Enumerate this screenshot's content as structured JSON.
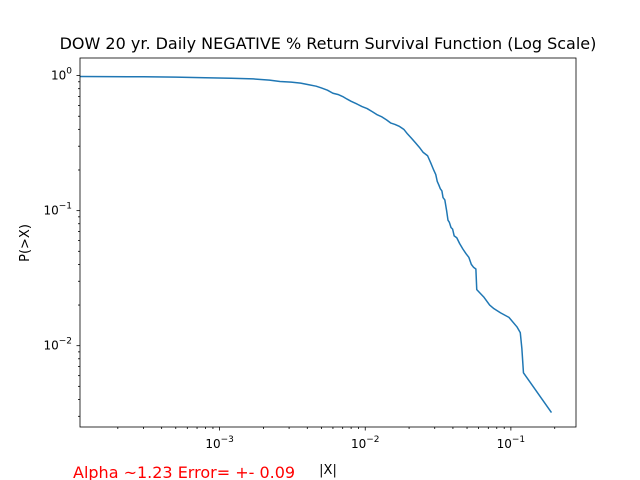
{
  "chart_data": {
    "type": "line",
    "title": "DOW 20 yr. Daily NEGATIVE % Return Survival Function (Log Scale)",
    "xlabel": "|X|",
    "ylabel": "P(>X)",
    "xscale": "log",
    "yscale": "log",
    "xlim": [
      0.00011,
      0.28
    ],
    "ylim": [
      0.0025,
      1.35
    ],
    "grid": false,
    "line_color": "#1f77b4",
    "xticks": [
      {
        "value": 0.001,
        "base": "10",
        "exp": "−3"
      },
      {
        "value": 0.01,
        "base": "10",
        "exp": "−2"
      },
      {
        "value": 0.1,
        "base": "10",
        "exp": "−1"
      }
    ],
    "yticks": [
      {
        "value": 0.01,
        "base": "10",
        "exp": "−2"
      },
      {
        "value": 0.1,
        "base": "10",
        "exp": "−1"
      },
      {
        "value": 1,
        "base": "10",
        "exp": "0"
      }
    ],
    "series": [
      {
        "points": [
          [
            0.00011,
            0.985
          ],
          [
            0.0003,
            0.98
          ],
          [
            0.0005,
            0.975
          ],
          [
            0.0008,
            0.965
          ],
          [
            0.0012,
            0.955
          ],
          [
            0.0017,
            0.945
          ],
          [
            0.0022,
            0.925
          ],
          [
            0.0026,
            0.905
          ],
          [
            0.0031,
            0.895
          ],
          [
            0.0036,
            0.88
          ],
          [
            0.0041,
            0.855
          ],
          [
            0.0046,
            0.835
          ],
          [
            0.005,
            0.81
          ],
          [
            0.0055,
            0.78
          ],
          [
            0.006,
            0.74
          ],
          [
            0.0065,
            0.725
          ],
          [
            0.007,
            0.7
          ],
          [
            0.0075,
            0.67
          ],
          [
            0.008,
            0.645
          ],
          [
            0.0088,
            0.615
          ],
          [
            0.0095,
            0.59
          ],
          [
            0.0103,
            0.57
          ],
          [
            0.0112,
            0.54
          ],
          [
            0.012,
            0.515
          ],
          [
            0.013,
            0.495
          ],
          [
            0.014,
            0.47
          ],
          [
            0.015,
            0.445
          ],
          [
            0.016,
            0.435
          ],
          [
            0.0172,
            0.42
          ],
          [
            0.0184,
            0.4
          ],
          [
            0.0195,
            0.37
          ],
          [
            0.0207,
            0.345
          ],
          [
            0.022,
            0.32
          ],
          [
            0.0235,
            0.295
          ],
          [
            0.025,
            0.27
          ],
          [
            0.0268,
            0.255
          ],
          [
            0.0282,
            0.225
          ],
          [
            0.0295,
            0.2
          ],
          [
            0.0305,
            0.185
          ],
          [
            0.0312,
            0.165
          ],
          [
            0.032,
            0.155
          ],
          [
            0.0328,
            0.145
          ],
          [
            0.0336,
            0.14
          ],
          [
            0.0342,
            0.125
          ],
          [
            0.0352,
            0.12
          ],
          [
            0.0362,
            0.1
          ],
          [
            0.037,
            0.085
          ],
          [
            0.0378,
            0.082
          ],
          [
            0.0388,
            0.075
          ],
          [
            0.0398,
            0.073
          ],
          [
            0.0408,
            0.065
          ],
          [
            0.0425,
            0.063
          ],
          [
            0.0445,
            0.057
          ],
          [
            0.0468,
            0.052
          ],
          [
            0.0492,
            0.048
          ],
          [
            0.0515,
            0.045
          ],
          [
            0.0535,
            0.04
          ],
          [
            0.0555,
            0.038
          ],
          [
            0.0575,
            0.037
          ],
          [
            0.0583,
            0.026
          ],
          [
            0.065,
            0.023
          ],
          [
            0.0715,
            0.02
          ],
          [
            0.0765,
            0.0188
          ],
          [
            0.085,
            0.0175
          ],
          [
            0.097,
            0.0162
          ],
          [
            0.11,
            0.0138
          ],
          [
            0.116,
            0.0125
          ],
          [
            0.119,
            0.0095
          ],
          [
            0.122,
            0.0063
          ],
          [
            0.19,
            0.0032
          ]
        ]
      }
    ],
    "annotation": "Alpha ~1.23  Error= +- 0.09"
  }
}
